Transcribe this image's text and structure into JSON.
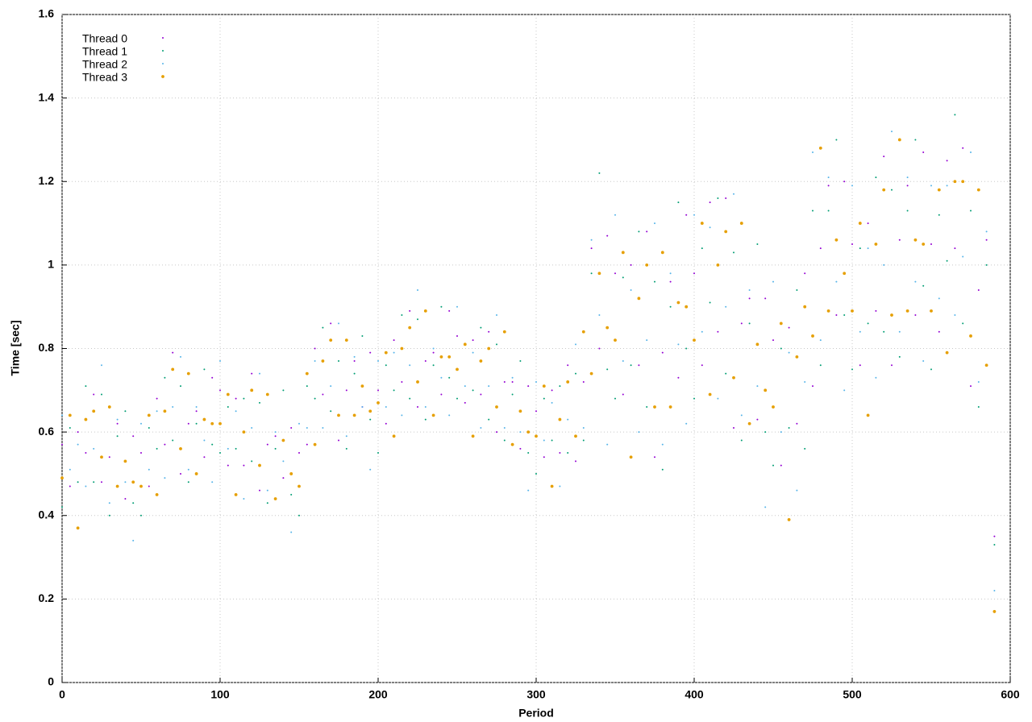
{
  "chart_data": {
    "type": "scatter",
    "xlabel": "Period",
    "ylabel": "Time [sec]",
    "xlim": [
      0,
      600
    ],
    "ylim": [
      0,
      1.6
    ],
    "xticks": [
      0,
      100,
      200,
      300,
      400,
      500,
      600
    ],
    "yticks": [
      0,
      0.2,
      0.4,
      0.6,
      0.8,
      1,
      1.2,
      1.4,
      1.6
    ],
    "grid": true,
    "legend": "top-left",
    "x": [
      0,
      5,
      10,
      15,
      20,
      25,
      30,
      35,
      40,
      45,
      50,
      55,
      60,
      65,
      70,
      75,
      80,
      85,
      90,
      95,
      100,
      105,
      110,
      115,
      120,
      125,
      130,
      135,
      140,
      145,
      150,
      155,
      160,
      165,
      170,
      175,
      180,
      185,
      190,
      195,
      200,
      205,
      210,
      215,
      220,
      225,
      230,
      235,
      240,
      245,
      250,
      255,
      260,
      265,
      270,
      275,
      280,
      285,
      290,
      295,
      300,
      305,
      310,
      315,
      320,
      325,
      330,
      335,
      340,
      345,
      350,
      355,
      360,
      365,
      370,
      375,
      380,
      385,
      390,
      395,
      400,
      405,
      410,
      415,
      420,
      425,
      430,
      435,
      440,
      445,
      450,
      455,
      460,
      465,
      470,
      475,
      480,
      485,
      490,
      495,
      500,
      505,
      510,
      515,
      520,
      525,
      530,
      535,
      540,
      545,
      550,
      555,
      560,
      565,
      570,
      575,
      580,
      585,
      590
    ],
    "series": [
      {
        "name": "Thread 0",
        "color": "#9400d3",
        "values": [
          0.57,
          0.47,
          0.6,
          0.55,
          0.69,
          0.48,
          0.54,
          0.62,
          0.44,
          0.59,
          0.55,
          0.47,
          0.68,
          0.57,
          0.79,
          0.5,
          0.62,
          0.65,
          0.54,
          0.73,
          0.7,
          0.52,
          0.68,
          0.52,
          0.74,
          0.46,
          0.57,
          0.59,
          0.49,
          0.61,
          0.55,
          0.57,
          0.8,
          0.69,
          0.86,
          0.58,
          0.7,
          0.77,
          0.66,
          0.79,
          0.7,
          0.62,
          0.82,
          0.72,
          0.89,
          0.66,
          0.77,
          0.79,
          0.69,
          0.89,
          0.83,
          0.67,
          0.82,
          0.69,
          0.84,
          0.6,
          0.72,
          0.72,
          0.56,
          0.71,
          0.65,
          0.54,
          0.7,
          0.55,
          0.76,
          0.53,
          0.72,
          1.04,
          0.8,
          1.07,
          0.98,
          0.69,
          1.0,
          0.76,
          1.08,
          0.54,
          0.79,
          0.96,
          0.73,
          1.12,
          0.98,
          0.76,
          1.15,
          0.84,
          1.16,
          0.61,
          0.86,
          0.92,
          0.63,
          0.92,
          0.82,
          0.52,
          0.85,
          0.62,
          0.98,
          0.71,
          1.04,
          1.19,
          0.88,
          1.2,
          1.05,
          0.76,
          1.1,
          0.89,
          1.26,
          0.76,
          1.06,
          1.19,
          0.88,
          1.27,
          1.05,
          0.84,
          1.25,
          1.04,
          1.28,
          0.71,
          0.94,
          1.06,
          0.35
        ]
      },
      {
        "name": "Thread 1",
        "color": "#009e73",
        "values": [
          0.42,
          0.61,
          0.48,
          0.71,
          0.48,
          0.69,
          0.4,
          0.59,
          0.65,
          0.43,
          0.4,
          0.61,
          0.56,
          0.73,
          0.58,
          0.71,
          0.48,
          0.62,
          0.75,
          0.57,
          0.55,
          0.66,
          0.56,
          0.68,
          0.53,
          0.67,
          0.43,
          0.56,
          0.7,
          0.45,
          0.4,
          0.71,
          0.68,
          0.85,
          0.65,
          0.77,
          0.56,
          0.74,
          0.83,
          0.63,
          0.55,
          0.76,
          0.7,
          0.88,
          0.68,
          0.87,
          0.63,
          0.76,
          0.9,
          0.73,
          0.68,
          0.81,
          0.7,
          0.85,
          0.63,
          0.81,
          0.58,
          0.69,
          0.77,
          0.55,
          0.5,
          0.68,
          0.58,
          0.71,
          0.55,
          0.74,
          0.58,
          0.98,
          1.22,
          0.75,
          0.68,
          0.97,
          0.76,
          1.08,
          0.66,
          0.96,
          0.51,
          0.9,
          1.15,
          0.8,
          0.68,
          1.04,
          0.91,
          1.16,
          0.74,
          1.03,
          0.58,
          0.86,
          1.05,
          0.6,
          0.52,
          0.8,
          0.61,
          0.94,
          0.56,
          1.13,
          0.76,
          1.13,
          1.3,
          0.88,
          0.75,
          1.04,
          0.86,
          1.21,
          0.84,
          1.18,
          0.78,
          1.13,
          1.3,
          0.95,
          0.75,
          1.12,
          1.01,
          1.36,
          0.86,
          1.13,
          0.66,
          1.0,
          0.33
        ]
      },
      {
        "name": "Thread 2",
        "color": "#56b4e9",
        "values": [
          0.64,
          0.51,
          0.57,
          0.47,
          0.56,
          0.76,
          0.43,
          0.63,
          0.48,
          0.34,
          0.62,
          0.51,
          0.65,
          0.49,
          0.66,
          0.78,
          0.51,
          0.66,
          0.58,
          0.48,
          0.77,
          0.56,
          0.65,
          0.44,
          0.61,
          0.74,
          0.46,
          0.6,
          0.53,
          0.36,
          0.62,
          0.61,
          0.77,
          0.61,
          0.71,
          0.86,
          0.59,
          0.78,
          0.66,
          0.51,
          0.77,
          0.66,
          0.79,
          0.64,
          0.76,
          0.94,
          0.66,
          0.8,
          0.73,
          0.64,
          0.9,
          0.71,
          0.79,
          0.61,
          0.71,
          0.88,
          0.61,
          0.73,
          0.6,
          0.46,
          0.72,
          0.58,
          0.67,
          0.47,
          0.63,
          0.81,
          0.61,
          1.06,
          0.88,
          0.57,
          1.12,
          0.77,
          0.94,
          0.6,
          0.82,
          1.1,
          0.57,
          0.98,
          0.81,
          0.62,
          1.12,
          0.84,
          1.09,
          0.68,
          0.9,
          1.17,
          0.64,
          0.94,
          0.71,
          0.42,
          0.96,
          0.6,
          0.79,
          0.46,
          0.72,
          1.27,
          0.82,
          1.21,
          0.96,
          0.7,
          1.19,
          0.84,
          1.04,
          0.73,
          1.0,
          1.32,
          0.84,
          1.21,
          0.96,
          0.77,
          1.19,
          0.92,
          1.19,
          0.88,
          1.02,
          1.27,
          0.72,
          1.08,
          0.22
        ]
      },
      {
        "name": "Thread 3",
        "color": "#e69f00",
        "values": [
          0.49,
          0.64,
          0.37,
          0.63,
          0.65,
          0.54,
          0.66,
          0.47,
          0.53,
          0.48,
          0.47,
          0.64,
          0.45,
          0.65,
          0.75,
          0.56,
          0.74,
          0.5,
          0.63,
          0.62,
          0.62,
          0.69,
          0.45,
          0.6,
          0.7,
          0.52,
          0.69,
          0.44,
          0.58,
          0.5,
          0.47,
          0.74,
          0.57,
          0.77,
          0.82,
          0.64,
          0.82,
          0.64,
          0.71,
          0.65,
          0.67,
          0.79,
          0.59,
          0.8,
          0.85,
          0.72,
          0.89,
          0.64,
          0.78,
          0.78,
          0.75,
          0.81,
          0.59,
          0.77,
          0.8,
          0.66,
          0.84,
          0.57,
          0.65,
          0.6,
          0.59,
          0.71,
          0.47,
          0.63,
          0.72,
          0.59,
          0.84,
          0.74,
          0.98,
          0.85,
          0.82,
          1.03,
          0.54,
          0.92,
          1.0,
          0.66,
          1.03,
          0.66,
          0.91,
          0.9,
          0.82,
          1.1,
          0.69,
          1.0,
          1.08,
          0.73,
          1.1,
          0.62,
          0.81,
          0.7,
          0.66,
          0.86,
          0.39,
          0.78,
          0.9,
          0.83,
          1.28,
          0.89,
          1.06,
          0.98,
          0.89,
          1.1,
          0.64,
          1.05,
          1.18,
          0.88,
          1.3,
          0.89,
          1.06,
          1.05,
          0.89,
          1.18,
          0.79,
          1.2,
          1.2,
          0.83,
          1.18,
          0.76,
          0.17
        ]
      }
    ]
  }
}
